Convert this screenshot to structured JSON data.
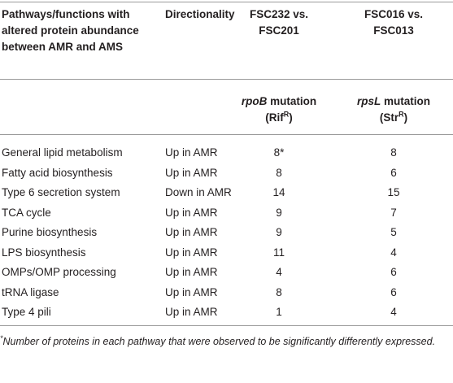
{
  "table": {
    "header": [
      "Pathways/functions with altered protein abundance between AMR and AMS",
      "Directionality",
      "FSC232 vs. FSC201",
      "FSC016 vs. FSC013"
    ],
    "subheader": [
      {
        "gene": "rpoB",
        "text": " mutation",
        "phenotype": "(Rif",
        "sup": "R",
        "close": ")"
      },
      {
        "gene": "rpsL",
        "text": " mutation",
        "phenotype": "(Str",
        "sup": "R",
        "close": ")"
      }
    ],
    "rows": [
      [
        "General lipid metabolism",
        "Up in AMR",
        "8*",
        8
      ],
      [
        "Fatty acid biosynthesis",
        "Up in AMR",
        8,
        6
      ],
      [
        "Type 6 secretion system",
        "Down in AMR",
        14,
        15
      ],
      [
        "TCA cycle",
        "Up in AMR",
        9,
        7
      ],
      [
        "Purine biosynthesis",
        "Up in AMR",
        9,
        5
      ],
      [
        "LPS biosynthesis",
        "Up in AMR",
        11,
        4
      ],
      [
        "OMPs/OMP processing",
        "Up in AMR",
        4,
        6
      ],
      [
        "tRNA ligase",
        "Up in AMR",
        8,
        6
      ],
      [
        "Type 4 pili",
        "Up in AMR",
        1,
        4
      ]
    ],
    "footnote": {
      "marker": "*",
      "text": "Number of proteins in each pathway that were observed to be significantly differently expressed."
    }
  }
}
